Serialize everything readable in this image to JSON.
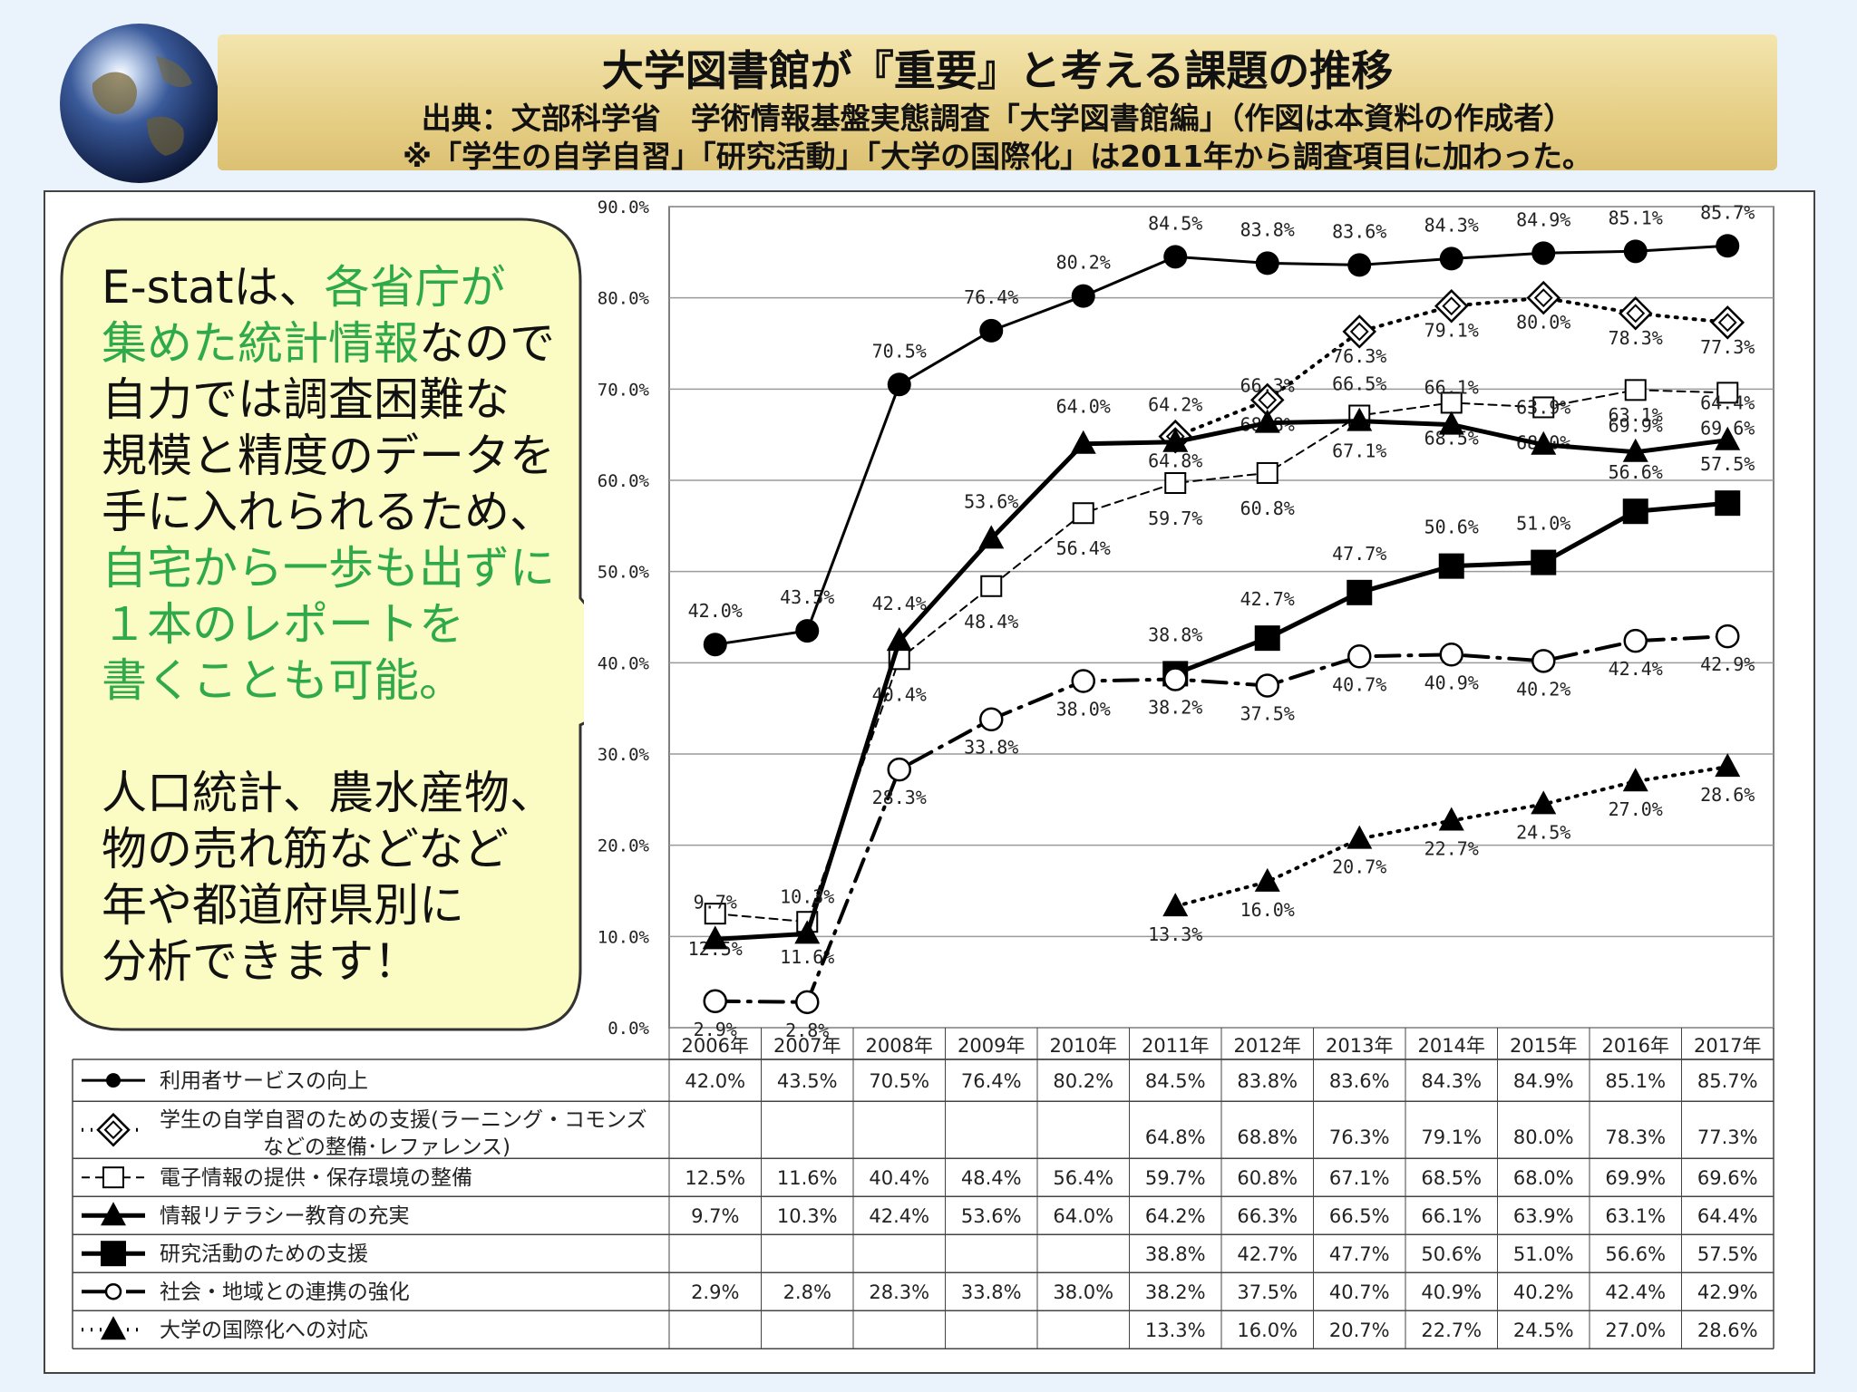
{
  "header": {
    "title": "大学図書館が『重要』と考える課題の推移",
    "source": "出典：文部科学省　学術情報基盤実態調査「大学図書館編」（作図は本資料の作成者）",
    "note": "※「学生の自学自習」「研究活動」「大学の国際化」は2011年から調査項目に加わった。"
  },
  "callout": {
    "p1": [
      {
        "text": "E-statは、",
        "green": false
      },
      {
        "text": "各省庁が",
        "green": true
      },
      {
        "text": "集めた統計情報",
        "green": true
      },
      {
        "text": "なので",
        "green": false
      },
      {
        "text": "自力では調査困難な",
        "green": false
      },
      {
        "text": "規模と精度のデータを",
        "green": false
      },
      {
        "text": "手に入れられるため、",
        "green": false
      },
      {
        "text": "自宅から一歩も出ずに",
        "green": true
      },
      {
        "text": "１本のレポートを",
        "green": true
      },
      {
        "text": "書くことも可能。",
        "green": true
      }
    ],
    "p2": [
      "人口統計、農水産物、",
      "物の売れ筋などなど",
      "年や都道府県別に",
      "分析できます！"
    ]
  },
  "colors": {
    "green_text": "#2eaa4a",
    "bubble_fill": "#fbfbc4",
    "banner": "#e6cf86"
  },
  "chart_data": {
    "type": "line",
    "x": [
      "2006年",
      "2007年",
      "2008年",
      "2009年",
      "2010年",
      "2011年",
      "2012年",
      "2013年",
      "2014年",
      "2015年",
      "2016年",
      "2017年"
    ],
    "yticks": [
      "0.0%",
      "10.0%",
      "20.0%",
      "30.0%",
      "40.0%",
      "50.0%",
      "60.0%",
      "70.0%",
      "80.0%",
      "90.0%"
    ],
    "ylim": [
      0,
      90
    ],
    "grid": true,
    "legend": "data table below chart",
    "series": [
      {
        "name": "利用者サービスの向上",
        "values": [
          42.0,
          43.5,
          70.5,
          76.4,
          80.2,
          84.5,
          83.8,
          83.6,
          84.3,
          84.9,
          85.1,
          85.7
        ],
        "marker": "circle-filled",
        "line": "solid",
        "width": 3
      },
      {
        "name": "学生の自学自習のための支援（ラーニング・コモンズなどの整備・レファレンス）",
        "name_lines": [
          "学生の自学自習のための支援(ラーニング・コモンズ",
          "などの整備･レファレンス)"
        ],
        "values": [
          null,
          null,
          null,
          null,
          null,
          64.8,
          68.8,
          76.3,
          79.1,
          80.0,
          78.3,
          77.3
        ],
        "marker": "diamond-open",
        "line": "dotted",
        "width": 4
      },
      {
        "name": "電子情報の提供・保存環境の整備",
        "values": [
          12.5,
          11.6,
          40.4,
          48.4,
          56.4,
          59.7,
          60.8,
          67.1,
          68.5,
          68.0,
          69.9,
          69.6
        ],
        "marker": "square-open",
        "line": "dashed",
        "width": 2
      },
      {
        "name": "情報リテラシー教育の充実",
        "values": [
          9.7,
          10.3,
          42.4,
          53.6,
          64.0,
          64.2,
          66.3,
          66.5,
          66.1,
          63.9,
          63.1,
          64.4
        ],
        "marker": "triangle-filled",
        "line": "solid",
        "width": 5
      },
      {
        "name": "研究活動のための支援",
        "values": [
          null,
          null,
          null,
          null,
          null,
          38.8,
          42.7,
          47.7,
          50.6,
          51.0,
          56.6,
          57.5
        ],
        "marker": "square-filled",
        "line": "solid",
        "width": 5
      },
      {
        "name": "社会・地域との連携の強化",
        "values": [
          2.9,
          2.8,
          28.3,
          33.8,
          38.0,
          38.2,
          37.5,
          40.7,
          40.9,
          40.2,
          42.4,
          42.9
        ],
        "marker": "circle-open",
        "line": "dashdot",
        "width": 4
      },
      {
        "name": "大学の国際化への対応",
        "values": [
          null,
          null,
          null,
          null,
          null,
          13.3,
          16.0,
          20.7,
          22.7,
          24.5,
          27.0,
          28.6
        ],
        "marker": "triangle-filled",
        "line": "dotted",
        "width": 4
      }
    ]
  }
}
